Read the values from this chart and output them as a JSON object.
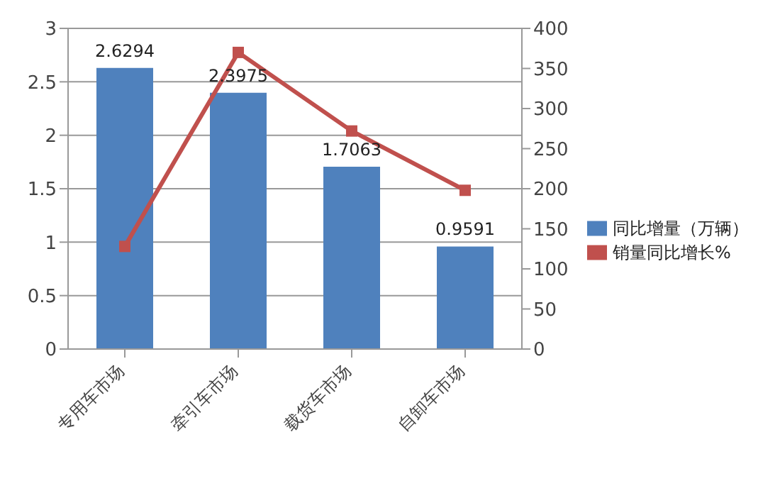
{
  "chart_data": {
    "type": "bar",
    "categories": [
      "专用车市场",
      "牵引车市场",
      "载货车市场",
      "自卸车市场"
    ],
    "series": [
      {
        "name": "同比增量（万辆）",
        "color": "#4f81bd",
        "values": [
          2.6294,
          2.3975,
          1.7063,
          0.9591
        ],
        "data_labels": true
      },
      {
        "name": "销量同比增长%",
        "type": "line",
        "axis": "y2",
        "color": "#c0504d",
        "values": [
          128,
          370,
          272,
          198
        ],
        "marker": "square"
      }
    ],
    "ylim": [
      0,
      3
    ],
    "yticks": [
      0,
      0.5,
      1,
      1.5,
      2,
      2.5,
      3
    ],
    "y2lim": [
      0,
      400
    ],
    "y2ticks": [
      0,
      50,
      100,
      150,
      200,
      250,
      300,
      350,
      400
    ],
    "grid": "y",
    "legend": "right"
  }
}
